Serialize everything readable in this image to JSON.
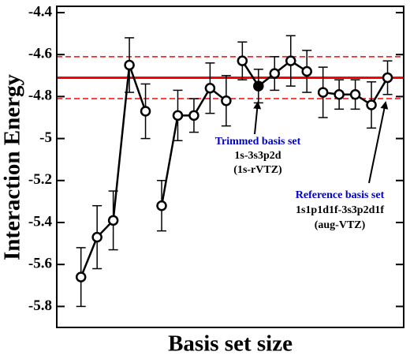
{
  "chart_data": {
    "type": "line",
    "x_label": "Basis set size",
    "y_label": "Interaction Energy",
    "xlim": [
      -0.5,
      21
    ],
    "ylim": [
      -5.9,
      -4.37
    ],
    "yticks": [
      -4.4,
      -4.6,
      -4.8,
      -5,
      -5.2,
      -5.4,
      -5.6,
      -5.8
    ],
    "line_color": "#000000",
    "series": [
      {
        "x": [
          1,
          2,
          3,
          4,
          5
        ],
        "values": [
          -5.66,
          -5.47,
          -5.39,
          -4.65,
          -4.87
        ],
        "errors": [
          0.14,
          0.15,
          0.14,
          0.13,
          0.13
        ],
        "markers": [
          "open",
          "open",
          "open",
          "open",
          "open"
        ]
      },
      {
        "x": [
          6,
          7,
          8,
          9,
          10
        ],
        "values": [
          -5.32,
          -4.89,
          -4.89,
          -4.76,
          -4.82
        ],
        "errors": [
          0.12,
          0.12,
          0.08,
          0.12,
          0.12
        ],
        "markers": [
          "open",
          "open",
          "open",
          "open",
          "open"
        ]
      },
      {
        "x": [
          11,
          12,
          13,
          14,
          15
        ],
        "values": [
          -4.63,
          -4.75,
          -4.69,
          -4.63,
          -4.68
        ],
        "errors": [
          0.09,
          0.08,
          0.08,
          0.12,
          0.1
        ],
        "markers": [
          "open",
          "filled",
          "open",
          "open",
          "open"
        ]
      },
      {
        "x": [
          16,
          17,
          18,
          19,
          20
        ],
        "values": [
          -4.78,
          -4.79,
          -4.79,
          -4.84,
          -4.71
        ],
        "errors": [
          0.12,
          0.07,
          0.07,
          0.11,
          0.08
        ],
        "markers": [
          "open",
          "open",
          "open",
          "open",
          "open"
        ]
      }
    ],
    "hlines": [
      {
        "value": -4.71,
        "style": "solid",
        "color": "#ff0000"
      },
      {
        "value": -4.61,
        "style": "dashed",
        "color": "#ff0000"
      },
      {
        "value": -4.81,
        "style": "dashed",
        "color": "#ff0000"
      }
    ],
    "annotations": [
      {
        "lines": [
          "Trimmed basis set",
          "1s-3s3p2d",
          "(1s-rVTZ)"
        ],
        "colors": [
          "#0000cc",
          "#000000",
          "#000000"
        ]
      },
      {
        "lines": [
          "Reference basis set",
          "1s1p1d1f-3s3p2d1f",
          "(aug-VTZ)"
        ],
        "colors": [
          "#0000cc",
          "#000000",
          "#000000"
        ]
      }
    ]
  }
}
